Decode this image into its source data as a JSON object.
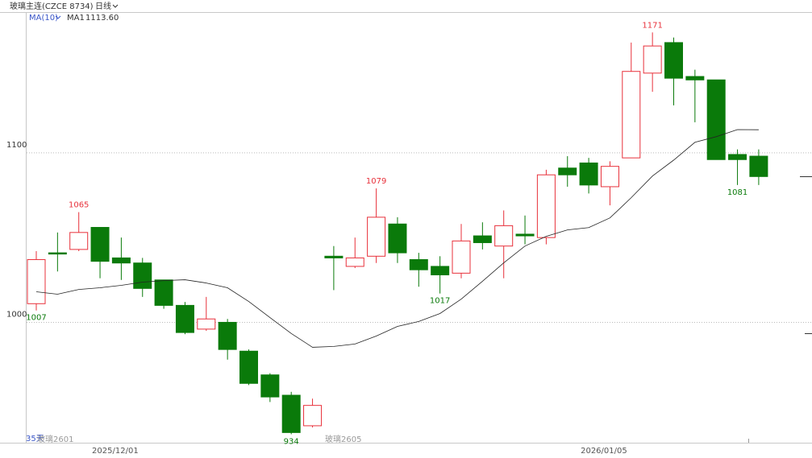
{
  "chart_data": {
    "type": "candlestick",
    "title": "玻璃主连(CZCE 8734)",
    "period": "日线",
    "indicator": "MA(10)",
    "ma_name": "MA1",
    "ma_last_label": "1113.60",
    "days_label": "35天",
    "contracts": [
      "玻璃2601",
      "玻璃2605"
    ],
    "categories": [
      null,
      null,
      null,
      "2025/12/01",
      null,
      null,
      null,
      null,
      null,
      null,
      null,
      null,
      null,
      null,
      null,
      null,
      null,
      null,
      null,
      null,
      null,
      null,
      null,
      null,
      null,
      null,
      "2026/01/05",
      null,
      null,
      null,
      null,
      null,
      null,
      null,
      null
    ],
    "open": [
      1011,
      1041,
      1043,
      1056,
      1038,
      1035,
      1025,
      1010,
      996,
      1000,
      983,
      969,
      957,
      939,
      1039,
      1033,
      1039,
      1058,
      1037,
      1033,
      1029,
      1051,
      1045,
      1052,
      1050,
      1091,
      1094,
      1080,
      1097,
      1147,
      1165,
      1145,
      1143,
      1099,
      1098
    ],
    "high": [
      1042,
      1053,
      1065,
      1056,
      1050,
      1038,
      1025,
      1012,
      1015,
      1002,
      984,
      970,
      959,
      955,
      1045,
      1050,
      1079,
      1062,
      1041,
      1039,
      1058,
      1059,
      1066,
      1063,
      1090,
      1098,
      1097,
      1095,
      1165,
      1171,
      1168,
      1149,
      1143,
      1102,
      1102
    ],
    "low": [
      1007,
      1030,
      1042,
      1026,
      1025,
      1015,
      1008,
      993,
      995,
      978,
      963,
      953,
      934,
      938,
      1019,
      1032,
      1035,
      1035,
      1021,
      1017,
      1026,
      1043,
      1026,
      1046,
      1046,
      1080,
      1076,
      1069,
      1097,
      1136,
      1128,
      1118,
      1096,
      1081,
      1081
    ],
    "close": [
      1037,
      1041,
      1053,
      1036,
      1035,
      1020,
      1010,
      994,
      1002,
      984,
      964,
      956,
      935,
      951,
      1038,
      1038,
      1062,
      1041,
      1031,
      1028,
      1048,
      1047,
      1057,
      1051,
      1087,
      1087,
      1081,
      1092,
      1148,
      1163,
      1144,
      1143,
      1096,
      1096,
      1086
    ],
    "ma": [
      1018.0,
      1016.6,
      1019.4,
      1020.4,
      1021.8,
      1023.7,
      1024.6,
      1025.1,
      1023.2,
      1020.4,
      1012.3,
      1002.8,
      993.4,
      985.3,
      985.8,
      987.2,
      991.9,
      997.6,
      1000.5,
      1005.2,
      1013.7,
      1024.2,
      1035.1,
      1045.0,
      1050.7,
      1054.5,
      1055.9,
      1061.6,
      1073.5,
      1086.3,
      1095.7,
      1106.2,
      1109.5,
      1113.7,
      1113.6
    ],
    "up_color": "#e8313b",
    "down_color": "#0a7a0a",
    "ma_color": "#222222",
    "ylim": [
      929,
      1183
    ],
    "yticks": [
      1000,
      1100
    ],
    "grid": true,
    "annotations": [
      {
        "label": "1065",
        "candle": 2,
        "at": "high"
      },
      {
        "label": "1079",
        "candle": 16,
        "at": "high"
      },
      {
        "label": "1171",
        "candle": 29,
        "at": "high"
      },
      {
        "label": "1007",
        "candle": 0,
        "at": "low"
      },
      {
        "label": "1017",
        "candle": 19,
        "at": "low"
      },
      {
        "label": "934",
        "candle": 12,
        "at": "low"
      },
      {
        "label": "1081",
        "candle": 33,
        "at": "low"
      }
    ]
  }
}
